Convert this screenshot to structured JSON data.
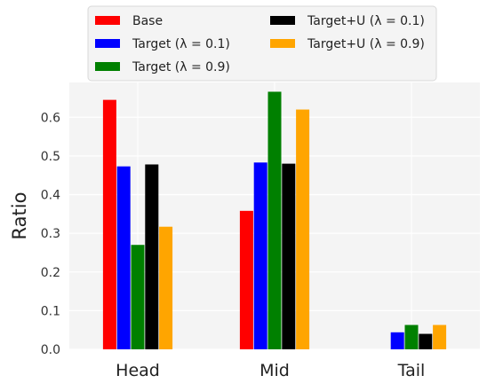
{
  "chart_data": {
    "type": "bar",
    "title": "",
    "xlabel": "",
    "ylabel": "Ratio",
    "categories": [
      "Head",
      "Mid",
      "Tail"
    ],
    "ylim": [
      0,
      0.69
    ],
    "yticks": [
      "0.0",
      "0.1",
      "0.2",
      "0.3",
      "0.4",
      "0.5",
      "0.6"
    ],
    "grid": true,
    "background": "#f4f4f4",
    "legend_position": "top-center",
    "series": [
      {
        "name": "Base",
        "color": "#ff0000",
        "values": [
          0.645,
          0.358,
          null
        ]
      },
      {
        "name": "Target (λ = 0.1)",
        "color": "#0000ff",
        "values": [
          0.473,
          0.483,
          0.044
        ]
      },
      {
        "name": "Target (λ = 0.9)",
        "color": "#008000",
        "values": [
          0.27,
          0.666,
          0.063
        ]
      },
      {
        "name": "Target+U (λ = 0.1)",
        "color": "#000000",
        "values": [
          0.478,
          0.48,
          0.04
        ]
      },
      {
        "name": "Target+U (λ = 0.9)",
        "color": "#ffa500",
        "values": [
          0.317,
          0.62,
          0.063
        ]
      }
    ]
  }
}
